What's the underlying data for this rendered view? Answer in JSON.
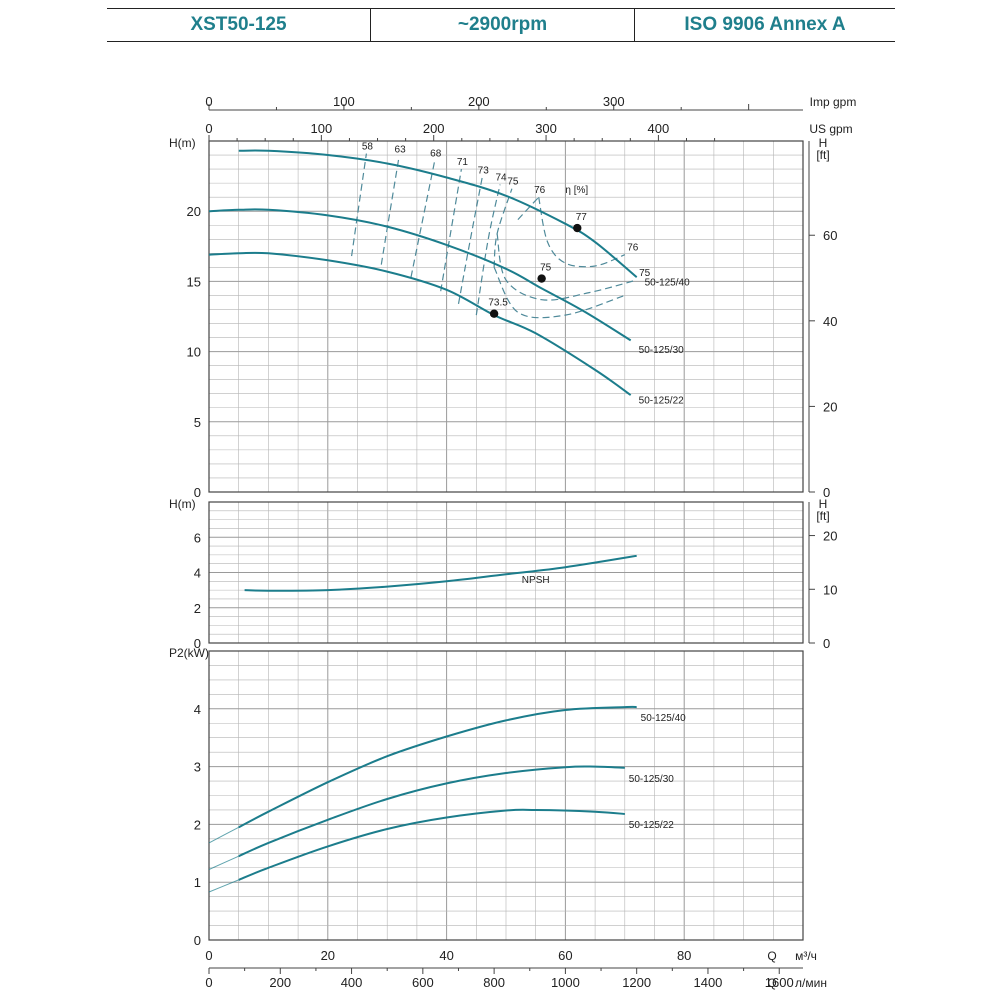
{
  "header": {
    "model": "XST50-125",
    "speed": "~2900rpm",
    "standard": "ISO 9906   Annex A"
  },
  "colors": {
    "curve": "#1c7d8c",
    "efficiency": "#4f8a9a",
    "grid": "#b5b5b5",
    "frame": "#444444"
  },
  "chart_data": [
    {
      "name": "head-curve",
      "type": "line",
      "xlabel": "Q м³/ч",
      "ylabel": "H(m)",
      "ylabel_right": "H [ft]",
      "xlim": [
        0,
        100
      ],
      "ylim": [
        0,
        25
      ],
      "y_ticks": [
        0,
        5,
        10,
        15,
        20
      ],
      "y_ticks_right": [
        0,
        20,
        40,
        60
      ],
      "top_axis_imp": {
        "label": "Imp gpm",
        "ticks": [
          0,
          100,
          200,
          300
        ]
      },
      "top_axis_us": {
        "label": "US gpm",
        "ticks": [
          0,
          100,
          200,
          300,
          400
        ]
      },
      "series": [
        {
          "name": "50-125/40",
          "x": [
            5,
            10,
            20,
            30,
            40,
            50,
            60,
            65,
            72
          ],
          "y": [
            24.3,
            24.3,
            24.0,
            23.4,
            22.4,
            21.1,
            19.1,
            17.8,
            15.3
          ]
        },
        {
          "name": "50-125/30",
          "x": [
            0,
            5,
            10,
            20,
            30,
            40,
            50,
            56,
            63,
            71
          ],
          "y": [
            20.0,
            20.1,
            20.1,
            19.7,
            18.9,
            17.6,
            15.9,
            14.5,
            12.9,
            10.8
          ]
        },
        {
          "name": "50-125/22",
          "x": [
            0,
            5,
            10,
            20,
            30,
            40,
            48,
            55,
            65,
            71
          ],
          "y": [
            16.9,
            17.0,
            17.0,
            16.5,
            15.7,
            14.4,
            12.6,
            11.3,
            8.7,
            6.9
          ]
        }
      ],
      "efficiency_label": "η [%]",
      "efficiency_lines": [
        {
          "label": "58",
          "pts": [
            [
              24,
              16.8
            ],
            [
              26.5,
              24.1
            ]
          ]
        },
        {
          "label": "63",
          "pts": [
            [
              29,
              16.2
            ],
            [
              32,
              23.9
            ]
          ]
        },
        {
          "label": "68",
          "pts": [
            [
              34,
              15.3
            ],
            [
              38,
              23.6
            ]
          ]
        },
        {
          "label": "71",
          "pts": [
            [
              39,
              14.3
            ],
            [
              42.5,
              23.0
            ]
          ]
        },
        {
          "label": "73",
          "pts": [
            [
              42,
              13.4
            ],
            [
              44,
              18.0
            ],
            [
              46,
              22.4
            ]
          ]
        },
        {
          "label": "74",
          "pts": [
            [
              45,
              12.6
            ],
            [
              47,
              18.0
            ],
            [
              49,
              21.9
            ]
          ]
        },
        {
          "label": "75",
          "pts": [
            [
              48,
              16.0
            ],
            [
              48.5,
              18.4
            ],
            [
              51,
              21.6
            ]
          ]
        },
        {
          "label": "76",
          "pts": [
            [
              52,
              19.4
            ],
            [
              55.5,
              21.0
            ]
          ]
        }
      ],
      "efficiency_contours": [
        {
          "label": "76",
          "pts": [
            [
              55.5,
              21.0
            ],
            [
              57,
              17.8
            ],
            [
              60,
              16.3
            ],
            [
              65,
              16.1
            ],
            [
              70,
              16.9
            ]
          ]
        },
        {
          "label": "75",
          "pts": [
            [
              48.5,
              18.4
            ],
            [
              50,
              15.1
            ],
            [
              56,
              13.7
            ],
            [
              64,
              14.2
            ],
            [
              72,
              15.1
            ]
          ]
        },
        {
          "label": "",
          "pts": [
            [
              48,
              16.0
            ],
            [
              52,
              12.8
            ],
            [
              60,
              12.6
            ],
            [
              70,
              14.0
            ]
          ]
        }
      ],
      "bep_points": [
        {
          "label": "77",
          "x": 62,
          "y": 18.8
        },
        {
          "label": "75",
          "x": 56,
          "y": 15.2
        },
        {
          "label": "73.5",
          "x": 48,
          "y": 12.7
        }
      ]
    },
    {
      "name": "npsh-curve",
      "type": "line",
      "xlabel": "Q",
      "ylabel": "H(m)",
      "ylabel_right": "H [ft]",
      "xlim": [
        0,
        100
      ],
      "ylim": [
        0,
        8
      ],
      "y_ticks": [
        0,
        2,
        4,
        6
      ],
      "y_ticks_right": [
        0,
        10,
        20
      ],
      "series": [
        {
          "name": "NPSH",
          "x": [
            6,
            10,
            20,
            30,
            40,
            50,
            60,
            72
          ],
          "y": [
            3.0,
            2.97,
            3.0,
            3.2,
            3.5,
            3.9,
            4.3,
            4.95
          ]
        }
      ]
    },
    {
      "name": "power-curve",
      "type": "line",
      "xlabel": "Q м³/ч",
      "xlabel2": "Q л/мин",
      "ylabel": "P2(kW)",
      "xlim": [
        0,
        100
      ],
      "ylim": [
        0,
        5
      ],
      "y_ticks": [
        0,
        1,
        2,
        3,
        4
      ],
      "x_ticks": [
        0,
        20,
        40,
        60,
        80
      ],
      "x_ticks_lmin": [
        0,
        200,
        400,
        600,
        800,
        1000,
        1200,
        1400,
        1600
      ],
      "x_lmin_max": 1666.67,
      "series": [
        {
          "name": "50-125/40",
          "x": [
            0,
            5,
            10,
            20,
            30,
            40,
            50,
            60,
            70,
            72
          ],
          "y": [
            1.68,
            1.95,
            2.22,
            2.73,
            3.18,
            3.52,
            3.8,
            3.98,
            4.03,
            4.03
          ]
        },
        {
          "name": "50-125/30",
          "x": [
            0,
            5,
            10,
            20,
            30,
            40,
            50,
            60,
            65,
            70
          ],
          "y": [
            1.22,
            1.45,
            1.68,
            2.08,
            2.44,
            2.71,
            2.89,
            2.99,
            3.0,
            2.98
          ]
        },
        {
          "name": "50-125/22",
          "x": [
            0,
            5,
            10,
            20,
            30,
            40,
            50,
            55,
            65,
            70
          ],
          "y": [
            0.83,
            1.04,
            1.25,
            1.62,
            1.92,
            2.12,
            2.24,
            2.25,
            2.22,
            2.18
          ]
        }
      ]
    }
  ]
}
